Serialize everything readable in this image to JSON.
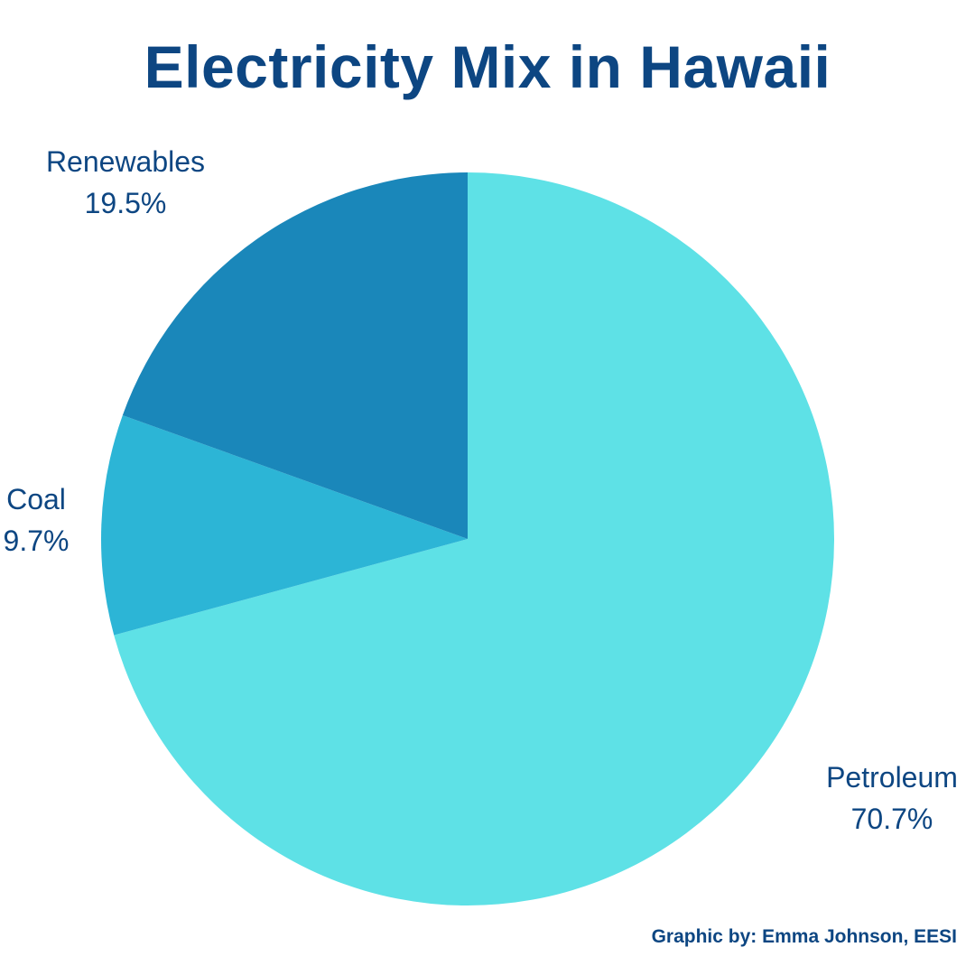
{
  "chart_data": {
    "type": "pie",
    "title": "Electricity Mix in Hawaii",
    "slices": [
      {
        "name": "Petroleum",
        "value": 70.7,
        "label": "70.7%",
        "color": "#5ee1e6"
      },
      {
        "name": "Coal",
        "value": 9.7,
        "label": "9.7%",
        "color": "#2cb5d6"
      },
      {
        "name": "Renewables",
        "value": 19.5,
        "label": "19.5%",
        "color": "#1a87ba"
      }
    ],
    "start": "12 o'clock",
    "direction": "clockwise"
  },
  "credit": "Graphic by: Emma Johnson, EESI"
}
